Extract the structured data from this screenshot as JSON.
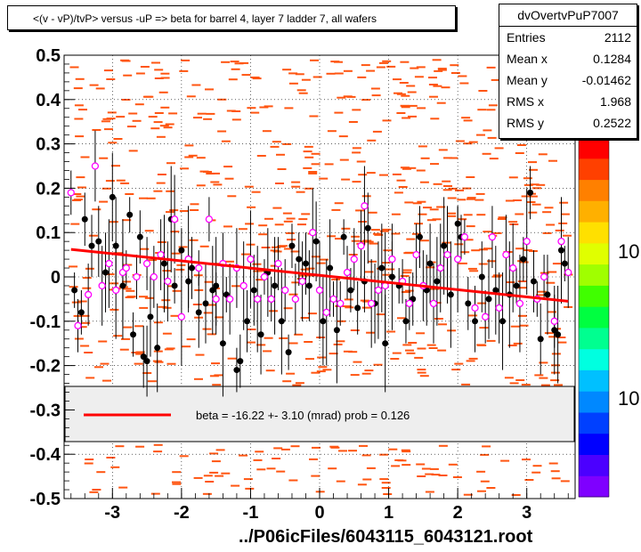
{
  "title": "<(v - vP)/tvP> versus  -uP => beta for barrel 4, layer 7 ladder 7, all wafers",
  "stats": {
    "name": "dvOvertvPuP7007",
    "rows": [
      {
        "key": "Entries",
        "value": "2112"
      },
      {
        "key": "Mean x",
        "value": "0.1284"
      },
      {
        "key": "Mean y",
        "value": "-0.01462"
      },
      {
        "key": "RMS x",
        "value": "1.968"
      },
      {
        "key": "RMS y",
        "value": "0.2522"
      }
    ]
  },
  "legend": {
    "text": "beta =  -16.22 +-  3.10 (mrad) prob = 0.126",
    "line_color": "#ff0000"
  },
  "x_footer": "../P06icFiles/6043115_6043121.root",
  "palette_labels": [
    "10",
    "10"
  ],
  "colors": {
    "heatmap": "#ff5511",
    "black_points": "#000000",
    "magenta_points": "#ff00ff",
    "fit": "#ff0000",
    "legend_bg": "#eeeeee"
  },
  "chart_data": {
    "type": "scatter",
    "xlim": [
      -3.7,
      3.7
    ],
    "ylim": [
      -0.5,
      0.5
    ],
    "xticks": [
      -3,
      -2,
      -1,
      0,
      1,
      2,
      3
    ],
    "xtick_labels": [
      "-3",
      "-2",
      "-1",
      "0",
      "1",
      "2",
      "3"
    ],
    "yticks": [
      -0.5,
      -0.4,
      -0.3,
      -0.2,
      -0.1,
      0,
      0.1,
      0.2,
      0.3,
      0.4,
      0.5
    ],
    "ytick_labels": [
      "-0.5",
      "-0.4",
      "-0.3",
      "-0.2",
      "-0.1",
      "0",
      "0.1",
      "0.2",
      "0.3",
      "0.4",
      "0.5"
    ],
    "grid": true,
    "fit_line": {
      "x": [
        -3.6,
        3.6
      ],
      "y": [
        0.062,
        -0.055
      ]
    },
    "black_points": [
      [
        -3.55,
        -0.03
      ],
      [
        -3.45,
        -0.08
      ],
      [
        -3.4,
        0.13
      ],
      [
        -3.3,
        0.07
      ],
      [
        -3.2,
        0.08
      ],
      [
        -3.1,
        0.01
      ],
      [
        -3.0,
        0.18
      ],
      [
        -2.95,
        0.07
      ],
      [
        -2.85,
        -0.02
      ],
      [
        -2.75,
        0.14
      ],
      [
        -2.7,
        -0.13
      ],
      [
        -2.6,
        0.09
      ],
      [
        -2.55,
        -0.18
      ],
      [
        -2.5,
        -0.19
      ],
      [
        -2.45,
        -0.09
      ],
      [
        -2.35,
        -0.16
      ],
      [
        -2.25,
        0.03
      ],
      [
        -2.15,
        0.13
      ],
      [
        -2.1,
        -0.02
      ],
      [
        -2.0,
        0.06
      ],
      [
        -1.9,
        -0.01
      ],
      [
        -1.85,
        0.02
      ],
      [
        -1.75,
        -0.08
      ],
      [
        -1.65,
        -0.06
      ],
      [
        -1.55,
        -0.03
      ],
      [
        -1.5,
        -0.02
      ],
      [
        -1.4,
        -0.15
      ],
      [
        -1.35,
        -0.04
      ],
      [
        -1.2,
        -0.21
      ],
      [
        -1.15,
        -0.19
      ],
      [
        -1.05,
        -0.1
      ],
      [
        -0.95,
        -0.03
      ],
      [
        -0.85,
        -0.13
      ],
      [
        -0.75,
        0.01
      ],
      [
        -0.65,
        -0.02
      ],
      [
        -0.55,
        -0.1
      ],
      [
        -0.45,
        -0.17
      ],
      [
        -0.4,
        0.07
      ],
      [
        -0.3,
        0.04
      ],
      [
        -0.2,
        0.03
      ],
      [
        -0.15,
        -0.02
      ],
      [
        -0.05,
        0.08
      ],
      [
        0.05,
        -0.1
      ],
      [
        0.15,
        0.02
      ],
      [
        0.25,
        -0.12
      ],
      [
        0.35,
        0.09
      ],
      [
        0.45,
        -0.03
      ],
      [
        0.55,
        -0.07
      ],
      [
        0.65,
        -0.01
      ],
      [
        0.7,
        0.11
      ],
      [
        0.8,
        -0.06
      ],
      [
        0.9,
        0.02
      ],
      [
        0.95,
        -0.15
      ],
      [
        1.05,
        0.0
      ],
      [
        1.15,
        -0.02
      ],
      [
        1.25,
        -0.1
      ],
      [
        1.35,
        -0.05
      ],
      [
        1.45,
        0.09
      ],
      [
        1.55,
        -0.03
      ],
      [
        1.6,
        0.03
      ],
      [
        1.7,
        -0.01
      ],
      [
        1.8,
        0.07
      ],
      [
        1.9,
        -0.04
      ],
      [
        2.0,
        0.12
      ],
      [
        2.05,
        0.09
      ],
      [
        2.15,
        -0.06
      ],
      [
        2.25,
        -0.1
      ],
      [
        2.35,
        0.0
      ],
      [
        2.45,
        -0.05
      ],
      [
        2.55,
        -0.03
      ],
      [
        2.65,
        -0.1
      ],
      [
        2.75,
        -0.04
      ],
      [
        2.85,
        -0.02
      ],
      [
        2.95,
        0.04
      ],
      [
        3.05,
        0.19
      ],
      [
        3.1,
        -0.01
      ],
      [
        3.2,
        -0.14
      ],
      [
        3.3,
        -0.04
      ],
      [
        3.4,
        -0.12
      ],
      [
        3.45,
        -0.13
      ],
      [
        3.5,
        0.06
      ],
      [
        3.55,
        0.03
      ]
    ],
    "magenta_points": [
      [
        -3.6,
        0.19
      ],
      [
        -3.5,
        -0.11
      ],
      [
        -3.35,
        -0.04
      ],
      [
        -3.25,
        0.25
      ],
      [
        -3.15,
        -0.02
      ],
      [
        -3.05,
        0.03
      ],
      [
        -2.95,
        -0.03
      ],
      [
        -2.85,
        0.01
      ],
      [
        -2.8,
        0.02
      ],
      [
        -2.65,
        0.0
      ],
      [
        -2.5,
        0.03
      ],
      [
        -2.4,
        0.0
      ],
      [
        -2.3,
        0.05
      ],
      [
        -2.2,
        -0.01
      ],
      [
        -2.1,
        0.13
      ],
      [
        -2.0,
        -0.09
      ],
      [
        -1.9,
        0.04
      ],
      [
        -1.75,
        0.02
      ],
      [
        -1.6,
        0.13
      ],
      [
        -1.5,
        -0.05
      ],
      [
        -1.4,
        0.03
      ],
      [
        -1.3,
        -0.05
      ],
      [
        -1.2,
        0.02
      ],
      [
        -1.1,
        -0.02
      ],
      [
        -1.0,
        0.04
      ],
      [
        -0.9,
        -0.05
      ],
      [
        -0.8,
        0.0
      ],
      [
        -0.7,
        -0.05
      ],
      [
        -0.6,
        0.03
      ],
      [
        -0.5,
        -0.03
      ],
      [
        -0.35,
        -0.05
      ],
      [
        -0.25,
        -0.01
      ],
      [
        -0.1,
        0.1
      ],
      [
        0.0,
        -0.03
      ],
      [
        0.1,
        -0.08
      ],
      [
        0.2,
        -0.05
      ],
      [
        0.3,
        -0.06
      ],
      [
        0.4,
        0.01
      ],
      [
        0.5,
        0.04
      ],
      [
        0.6,
        0.07
      ],
      [
        0.65,
        0.16
      ],
      [
        0.75,
        -0.06
      ],
      [
        0.85,
        -0.03
      ],
      [
        0.95,
        -0.02
      ],
      [
        1.05,
        0.04
      ],
      [
        1.2,
        -0.01
      ],
      [
        1.3,
        -0.06
      ],
      [
        1.4,
        0.05
      ],
      [
        1.5,
        -0.02
      ],
      [
        1.65,
        -0.06
      ],
      [
        1.75,
        0.02
      ],
      [
        1.85,
        0.05
      ],
      [
        2.0,
        0.04
      ],
      [
        2.1,
        0.09
      ],
      [
        2.25,
        -0.07
      ],
      [
        2.4,
        -0.09
      ],
      [
        2.5,
        0.09
      ],
      [
        2.6,
        -0.07
      ],
      [
        2.7,
        0.05
      ],
      [
        2.8,
        0.02
      ],
      [
        2.9,
        -0.06
      ],
      [
        3.0,
        0.08
      ],
      [
        3.15,
        -0.05
      ],
      [
        3.25,
        0.0
      ],
      [
        3.4,
        -0.1
      ],
      [
        3.5,
        0.08
      ],
      [
        3.6,
        0.01
      ]
    ]
  }
}
